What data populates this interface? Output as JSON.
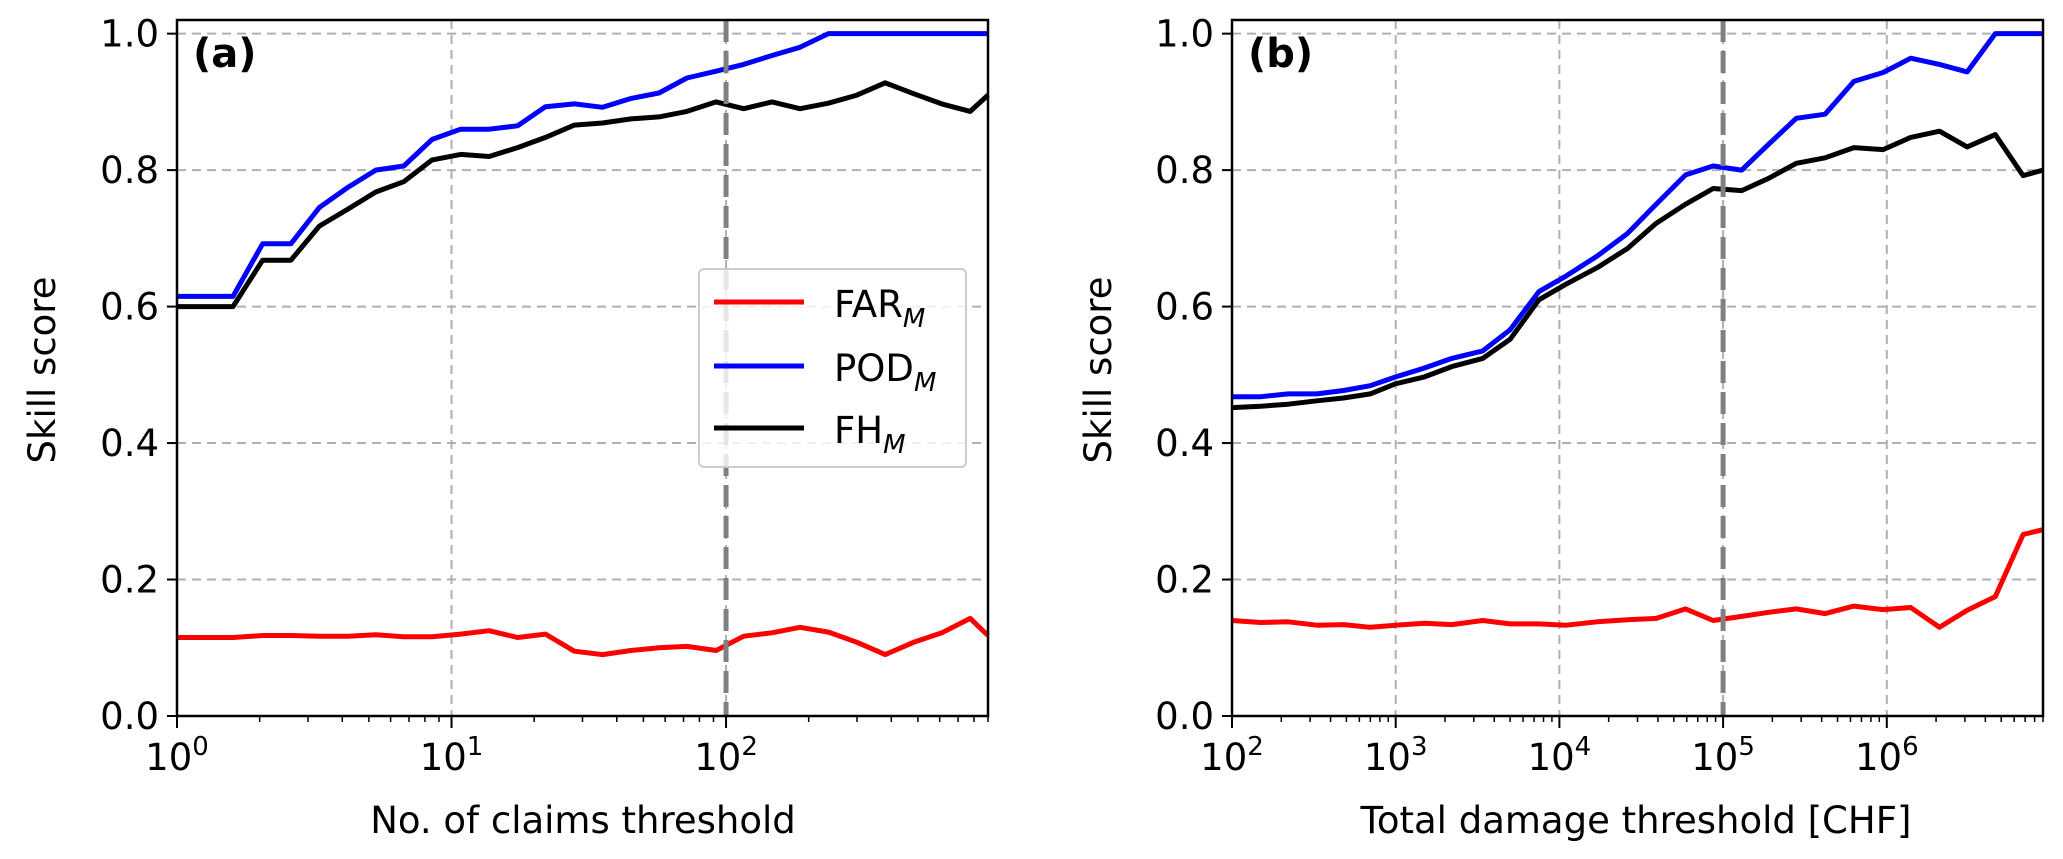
{
  "chart_data": [
    {
      "type": "line",
      "panel_label": "(a)",
      "xscale": "log",
      "xlabel": "No. of claims threshold",
      "ylabel": "Skill score",
      "xlim": [
        1,
        900
      ],
      "ylim": [
        0,
        1.02
      ],
      "xticks": [
        {
          "value": 1,
          "base": "10",
          "exp": "0"
        },
        {
          "value": 10,
          "base": "10",
          "exp": "1"
        },
        {
          "value": 100,
          "base": "10",
          "exp": "2"
        }
      ],
      "yticks": [
        "0.0",
        "0.2",
        "0.4",
        "0.6",
        "0.8",
        "1.0"
      ],
      "grid": true,
      "vline": 100,
      "legend": {
        "placement": "center-right",
        "entries": [
          {
            "base": "FAR",
            "sub": "M",
            "color": "#ff0000"
          },
          {
            "base": "POD",
            "sub": "M",
            "color": "#0000ff"
          },
          {
            "base": "FH",
            "sub": "M",
            "color": "#000000"
          }
        ]
      },
      "x": [
        1,
        1.3,
        1.6,
        2.05,
        2.6,
        3.3,
        4.2,
        5.3,
        6.7,
        8.5,
        10.8,
        13.7,
        17.4,
        22,
        28,
        35.5,
        45,
        57,
        72,
        92,
        116,
        147,
        186,
        236,
        300,
        380,
        482,
        611,
        775,
        900
      ],
      "series": [
        {
          "name": "FAR_M",
          "color": "#ff0000",
          "values": [
            0.115,
            0.115,
            0.115,
            0.118,
            0.118,
            0.117,
            0.117,
            0.119,
            0.116,
            0.116,
            0.12,
            0.125,
            0.115,
            0.12,
            0.095,
            0.09,
            0.096,
            0.1,
            0.102,
            0.096,
            0.117,
            0.122,
            0.13,
            0.123,
            0.108,
            0.09,
            0.108,
            0.122,
            0.143,
            0.118
          ]
        },
        {
          "name": "POD_M",
          "color": "#0000ff",
          "values": [
            0.615,
            0.615,
            0.615,
            0.692,
            0.692,
            0.745,
            0.775,
            0.8,
            0.806,
            0.845,
            0.86,
            0.86,
            0.865,
            0.893,
            0.897,
            0.892,
            0.905,
            0.913,
            0.935,
            0.945,
            0.955,
            0.968,
            0.98,
            1.0,
            1.0,
            1.0,
            1.0,
            1.0,
            1.0,
            1.0
          ]
        },
        {
          "name": "FH_M",
          "color": "#000000",
          "values": [
            0.6,
            0.6,
            0.6,
            0.668,
            0.668,
            0.718,
            0.743,
            0.768,
            0.783,
            0.815,
            0.823,
            0.82,
            0.833,
            0.848,
            0.866,
            0.869,
            0.875,
            0.878,
            0.886,
            0.9,
            0.89,
            0.9,
            0.89,
            0.898,
            0.91,
            0.928,
            0.912,
            0.897,
            0.886,
            0.91
          ]
        }
      ]
    },
    {
      "type": "line",
      "panel_label": "(b)",
      "xscale": "log",
      "xlabel": "Total damage threshold [CHF]",
      "ylabel": "Skill score",
      "xlim": [
        100,
        9000000
      ],
      "ylim": [
        0,
        1.02
      ],
      "xticks": [
        {
          "value": 100,
          "base": "10",
          "exp": "2"
        },
        {
          "value": 1000,
          "base": "10",
          "exp": "3"
        },
        {
          "value": 10000,
          "base": "10",
          "exp": "4"
        },
        {
          "value": 100000,
          "base": "10",
          "exp": "5"
        },
        {
          "value": 1000000,
          "base": "10",
          "exp": "6"
        }
      ],
      "yticks": [
        "0.0",
        "0.2",
        "0.4",
        "0.6",
        "0.8",
        "1.0"
      ],
      "grid": true,
      "vline": 100000,
      "x": [
        100,
        150,
        220,
        330,
        480,
        700,
        1000,
        1500,
        2200,
        3400,
        5000,
        7500,
        11000,
        17000,
        26000,
        39000,
        59000,
        87000,
        130000,
        190000,
        280000,
        420000,
        630000,
        950000,
        1400000,
        2100000,
        3100000,
        4600000,
        6800000,
        9000000
      ],
      "series": [
        {
          "name": "FAR_M",
          "color": "#ff0000",
          "values": [
            0.14,
            0.137,
            0.138,
            0.133,
            0.134,
            0.13,
            0.133,
            0.136,
            0.134,
            0.14,
            0.135,
            0.135,
            0.133,
            0.138,
            0.141,
            0.143,
            0.157,
            0.14,
            0.146,
            0.152,
            0.157,
            0.15,
            0.161,
            0.156,
            0.159,
            0.13,
            0.155,
            0.175,
            0.266,
            0.273
          ]
        },
        {
          "name": "POD_M",
          "color": "#0000ff",
          "values": [
            0.468,
            0.468,
            0.472,
            0.472,
            0.477,
            0.484,
            0.497,
            0.51,
            0.524,
            0.535,
            0.566,
            0.622,
            0.645,
            0.674,
            0.707,
            0.75,
            0.793,
            0.806,
            0.8,
            0.838,
            0.876,
            0.882,
            0.93,
            0.943,
            0.964,
            0.955,
            0.944,
            1.0,
            1.0,
            1.0
          ]
        },
        {
          "name": "FH_M",
          "color": "#000000",
          "values": [
            0.452,
            0.454,
            0.457,
            0.462,
            0.466,
            0.472,
            0.487,
            0.497,
            0.512,
            0.524,
            0.552,
            0.61,
            0.633,
            0.657,
            0.685,
            0.722,
            0.75,
            0.773,
            0.77,
            0.788,
            0.81,
            0.818,
            0.833,
            0.83,
            0.848,
            0.857,
            0.834,
            0.852,
            0.792,
            0.8
          ]
        }
      ]
    }
  ]
}
